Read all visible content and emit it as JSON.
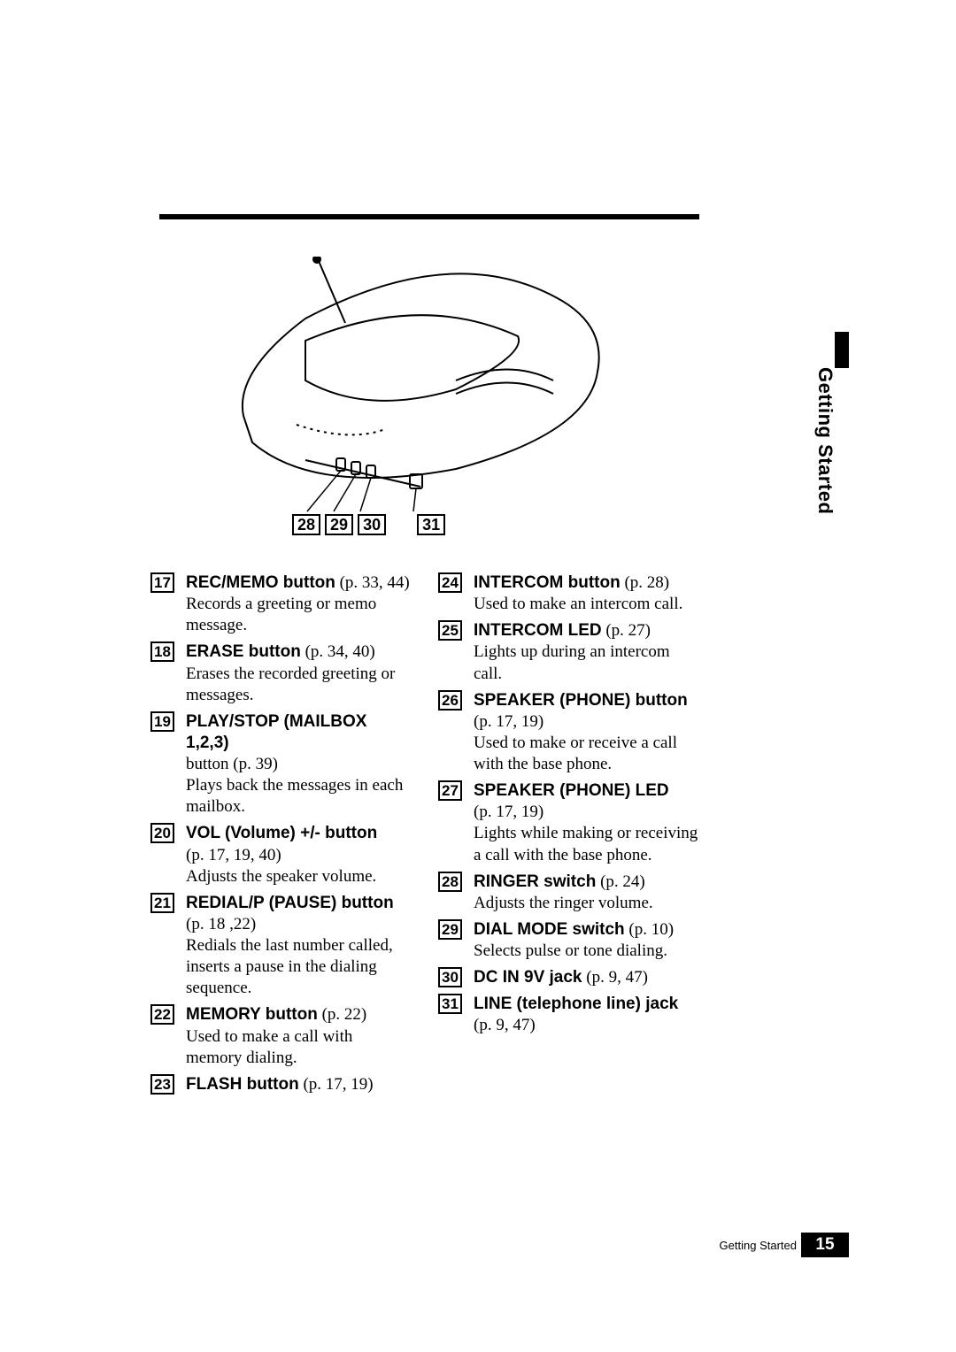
{
  "side_tab": "Getting Started",
  "illustration": {
    "labels": [
      "28",
      "29",
      "30",
      "31"
    ]
  },
  "left_items": [
    {
      "num": "17",
      "title": "REC/MEMO button",
      "ref": " (p. 33, 44)",
      "desc": "Records a greeting or memo message."
    },
    {
      "num": "18",
      "title": "ERASE button",
      "ref": " (p. 34, 40)",
      "desc": "Erases the recorded greeting or messages."
    },
    {
      "num": "19",
      "title": "PLAY/STOP (MAILBOX 1,2,3)",
      "ref": "",
      "desc": "button (p. 39)\nPlays back the messages in each mailbox."
    },
    {
      "num": "20",
      "title": "VOL (Volume) +/- button",
      "ref": "",
      "desc": "(p. 17, 19, 40)\nAdjusts the speaker volume."
    },
    {
      "num": "21",
      "title": "REDIAL/P (PAUSE) button",
      "ref": "",
      "desc": "(p. 18 ,22)\nRedials the last number called, inserts a pause in the dialing sequence."
    },
    {
      "num": "22",
      "title": "MEMORY button",
      "ref": " (p. 22)",
      "desc": "Used to make a call with memory dialing."
    },
    {
      "num": "23",
      "title": "FLASH button",
      "ref": " (p. 17, 19)",
      "desc": ""
    }
  ],
  "right_items": [
    {
      "num": "24",
      "title": "INTERCOM button",
      "ref": " (p. 28)",
      "desc": "Used to make an intercom call."
    },
    {
      "num": "25",
      "title": "INTERCOM LED",
      "ref": " (p. 27)",
      "desc": "Lights up during an intercom call."
    },
    {
      "num": "26",
      "title": "SPEAKER (PHONE) button",
      "ref": "",
      "desc": "(p. 17, 19)\nUsed to make or receive a call with the base phone."
    },
    {
      "num": "27",
      "title": "SPEAKER (PHONE) LED",
      "ref": "",
      "desc": "(p. 17, 19)\nLights while making or receiving a call with the base phone."
    },
    {
      "num": "28",
      "title": "RINGER switch",
      "ref": " (p. 24)",
      "desc": "Adjusts the ringer volume."
    },
    {
      "num": "29",
      "title": "DIAL MODE switch",
      "ref": " (p. 10)",
      "desc": "Selects pulse or tone dialing."
    },
    {
      "num": "30",
      "title": "DC IN 9V jack",
      "ref": " (p. 9, 47)",
      "desc": ""
    },
    {
      "num": "31",
      "title": "LINE (telephone line) jack",
      "ref": "",
      "desc": "(p. 9, 47)"
    }
  ],
  "footer": {
    "label": "Getting Started",
    "page": "15"
  },
  "colors": {
    "ink": "#000000",
    "paper": "#ffffff"
  }
}
